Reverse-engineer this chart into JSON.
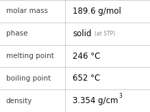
{
  "rows": [
    {
      "label": "molar mass",
      "value": "189.6 g/mol",
      "value2": null,
      "superscript": false
    },
    {
      "label": "phase",
      "value": "solid",
      "value2": "(at STP)",
      "superscript": false
    },
    {
      "label": "melting point",
      "value": "246 °C",
      "value2": null,
      "superscript": false
    },
    {
      "label": "boiling point",
      "value": "652 °C",
      "value2": null,
      "superscript": false
    },
    {
      "label": "density",
      "value": "3.354 g/cm",
      "value2": "3",
      "superscript": true
    }
  ],
  "bg_color": "#ffffff",
  "grid_color": "#bbbbbb",
  "label_color": "#404040",
  "value_color": "#000000",
  "value2_color": "#888888",
  "label_fontsize": 7.5,
  "value_fontsize": 8.5,
  "value2_fontsize": 5.5,
  "sup_fontsize": 5.5,
  "col_split": 0.435
}
